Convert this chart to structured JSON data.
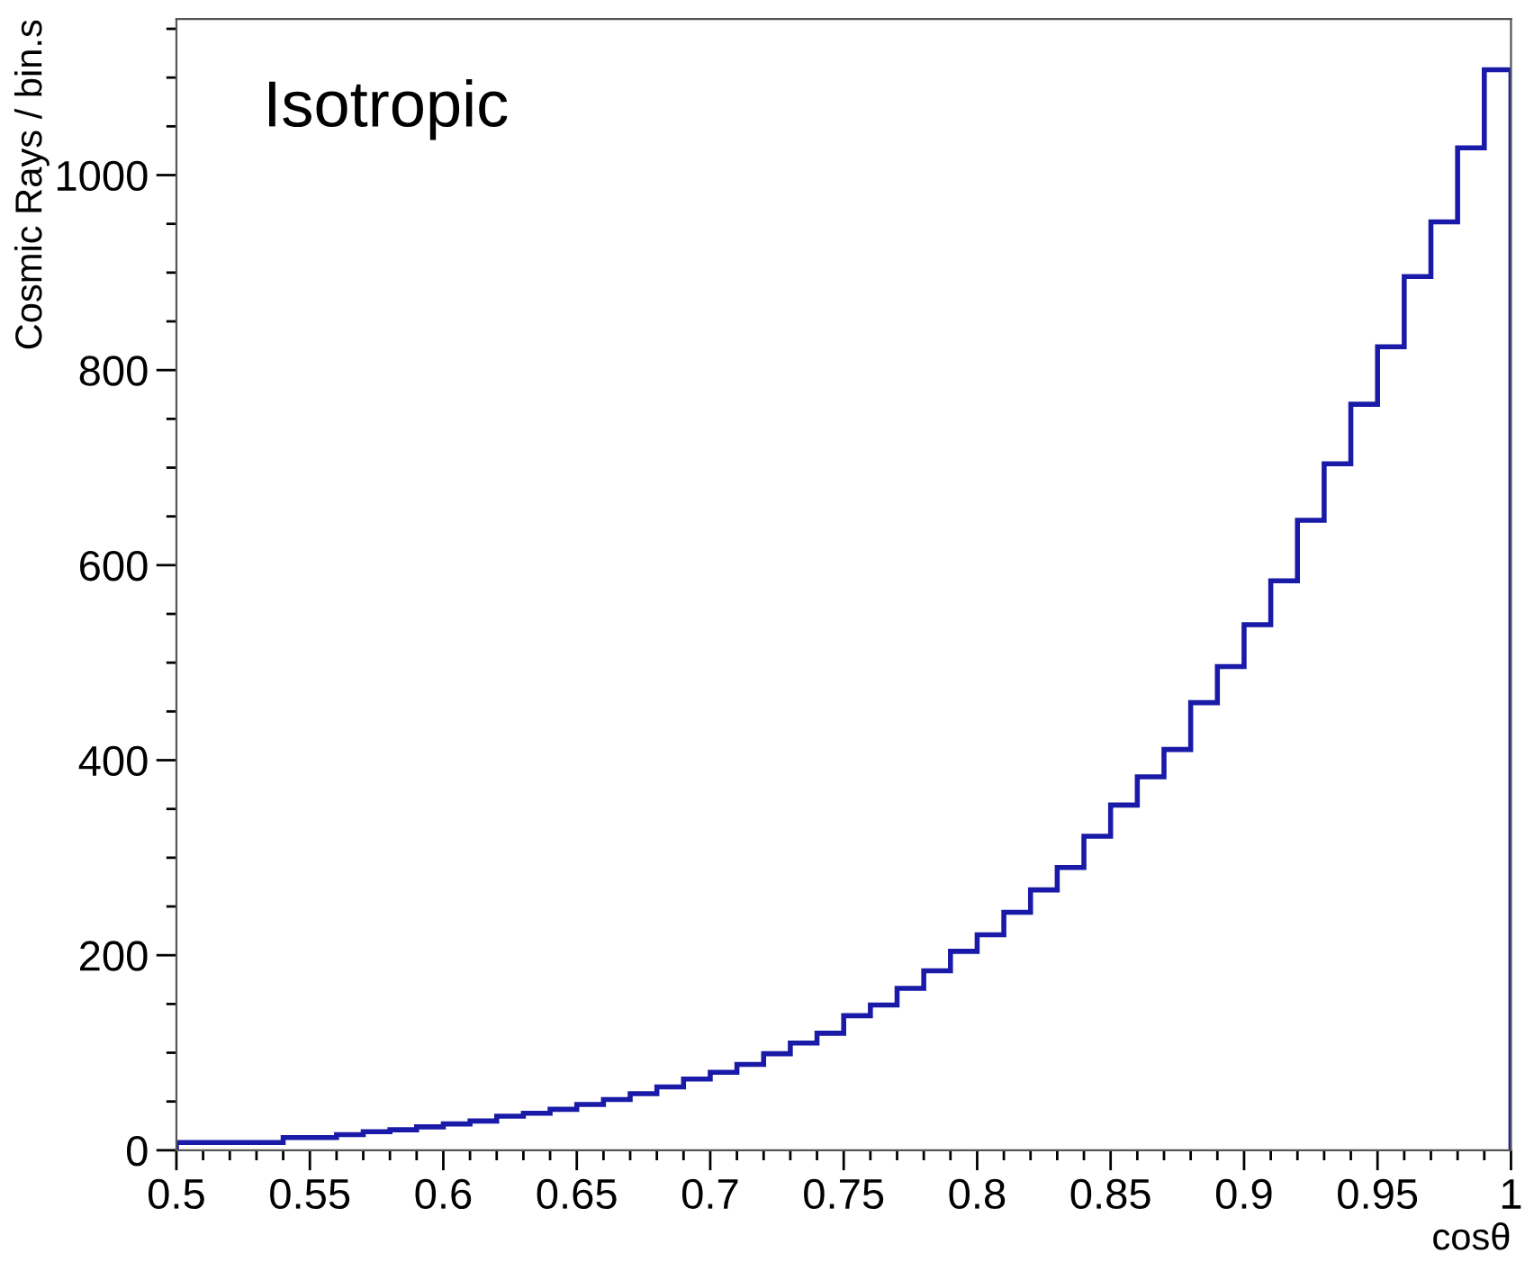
{
  "chart_data": {
    "type": "histogram",
    "xlabel": "cosθ",
    "ylabel": "Cosmic Rays / bin.s",
    "annotations": [
      "Isotropic"
    ],
    "color": "#1a1aa8",
    "grid": false,
    "bins": [
      0.5,
      0.51,
      0.52,
      0.53,
      0.54,
      0.55,
      0.56,
      0.57,
      0.58,
      0.59,
      0.6,
      0.61,
      0.62,
      0.63,
      0.64,
      0.65,
      0.66,
      0.67,
      0.68,
      0.69,
      0.7,
      0.71,
      0.72,
      0.73,
      0.74,
      0.75,
      0.76,
      0.77,
      0.78,
      0.79,
      0.8,
      0.81,
      0.82,
      0.83,
      0.84,
      0.85,
      0.86,
      0.87,
      0.88,
      0.89,
      0.9,
      0.91,
      0.92,
      0.93,
      0.94,
      0.95,
      0.96,
      0.97,
      0.98,
      0.99,
      1.0
    ],
    "values": [
      8,
      8,
      8,
      8,
      13,
      13,
      16,
      19,
      21,
      24,
      27,
      30,
      35,
      38,
      42,
      47,
      52,
      58,
      65,
      73,
      80,
      88,
      99,
      110,
      120,
      138,
      149,
      166,
      184,
      204,
      221,
      244,
      267,
      290,
      322,
      354,
      383,
      411,
      459,
      496,
      539,
      584,
      646,
      704,
      765,
      824,
      896,
      952,
      1028,
      1108
    ],
    "xlim": [
      0.5,
      1
    ],
    "ylim": [
      0,
      1160
    ],
    "xticks": [
      0.5,
      0.55,
      0.6,
      0.65,
      0.7,
      0.75,
      0.8,
      0.85,
      0.9,
      0.95,
      1,
      {
        "value": 0.51,
        "label": null
      },
      {
        "value": 0.52,
        "label": null
      },
      {
        "value": 0.53,
        "label": null
      },
      {
        "value": 0.54,
        "label": null
      },
      {
        "value": 0.56,
        "label": null
      },
      {
        "value": 0.57,
        "label": null
      },
      {
        "value": 0.58,
        "label": null
      },
      {
        "value": 0.59,
        "label": null
      },
      {
        "value": 0.61,
        "label": null
      },
      {
        "value": 0.62,
        "label": null
      },
      {
        "value": 0.63,
        "label": null
      },
      {
        "value": 0.64,
        "label": null
      },
      {
        "value": 0.66,
        "label": null
      },
      {
        "value": 0.67,
        "label": null
      },
      {
        "value": 0.68,
        "label": null
      },
      {
        "value": 0.69,
        "label": null
      },
      {
        "value": 0.71,
        "label": null
      },
      {
        "value": 0.72,
        "label": null
      },
      {
        "value": 0.73,
        "label": null
      },
      {
        "value": 0.74,
        "label": null
      },
      {
        "value": 0.76,
        "label": null
      },
      {
        "value": 0.77,
        "label": null
      },
      {
        "value": 0.78,
        "label": null
      },
      {
        "value": 0.79,
        "label": null
      },
      {
        "value": 0.81,
        "label": null
      },
      {
        "value": 0.82,
        "label": null
      },
      {
        "value": 0.83,
        "label": null
      },
      {
        "value": 0.84,
        "label": null
      },
      {
        "value": 0.86,
        "label": null
      },
      {
        "value": 0.87,
        "label": null
      },
      {
        "value": 0.88,
        "label": null
      },
      {
        "value": 0.89,
        "label": null
      },
      {
        "value": 0.91,
        "label": null
      },
      {
        "value": 0.92,
        "label": null
      },
      {
        "value": 0.93,
        "label": null
      },
      {
        "value": 0.94,
        "label": null
      },
      {
        "value": 0.96,
        "label": null
      },
      {
        "value": 0.97,
        "label": null
      },
      {
        "value": 0.98,
        "label": null
      },
      {
        "value": 0.99,
        "label": null
      }
    ],
    "yticks": [
      0,
      200,
      400,
      600,
      800,
      1000,
      {
        "value": 50,
        "label": null
      },
      {
        "value": 100,
        "label": null
      },
      {
        "value": 150,
        "label": null
      },
      {
        "value": 250,
        "label": null
      },
      {
        "value": 300,
        "label": null
      },
      {
        "value": 350,
        "label": null
      },
      {
        "value": 450,
        "label": null
      },
      {
        "value": 500,
        "label": null
      },
      {
        "value": 550,
        "label": null
      },
      {
        "value": 650,
        "label": null
      },
      {
        "value": 700,
        "label": null
      },
      {
        "value": 750,
        "label": null
      },
      {
        "value": 850,
        "label": null
      },
      {
        "value": 900,
        "label": null
      },
      {
        "value": 950,
        "label": null
      },
      {
        "value": 1050,
        "label": null
      },
      {
        "value": 1100,
        "label": null
      },
      {
        "value": 1150,
        "label": null
      }
    ]
  }
}
